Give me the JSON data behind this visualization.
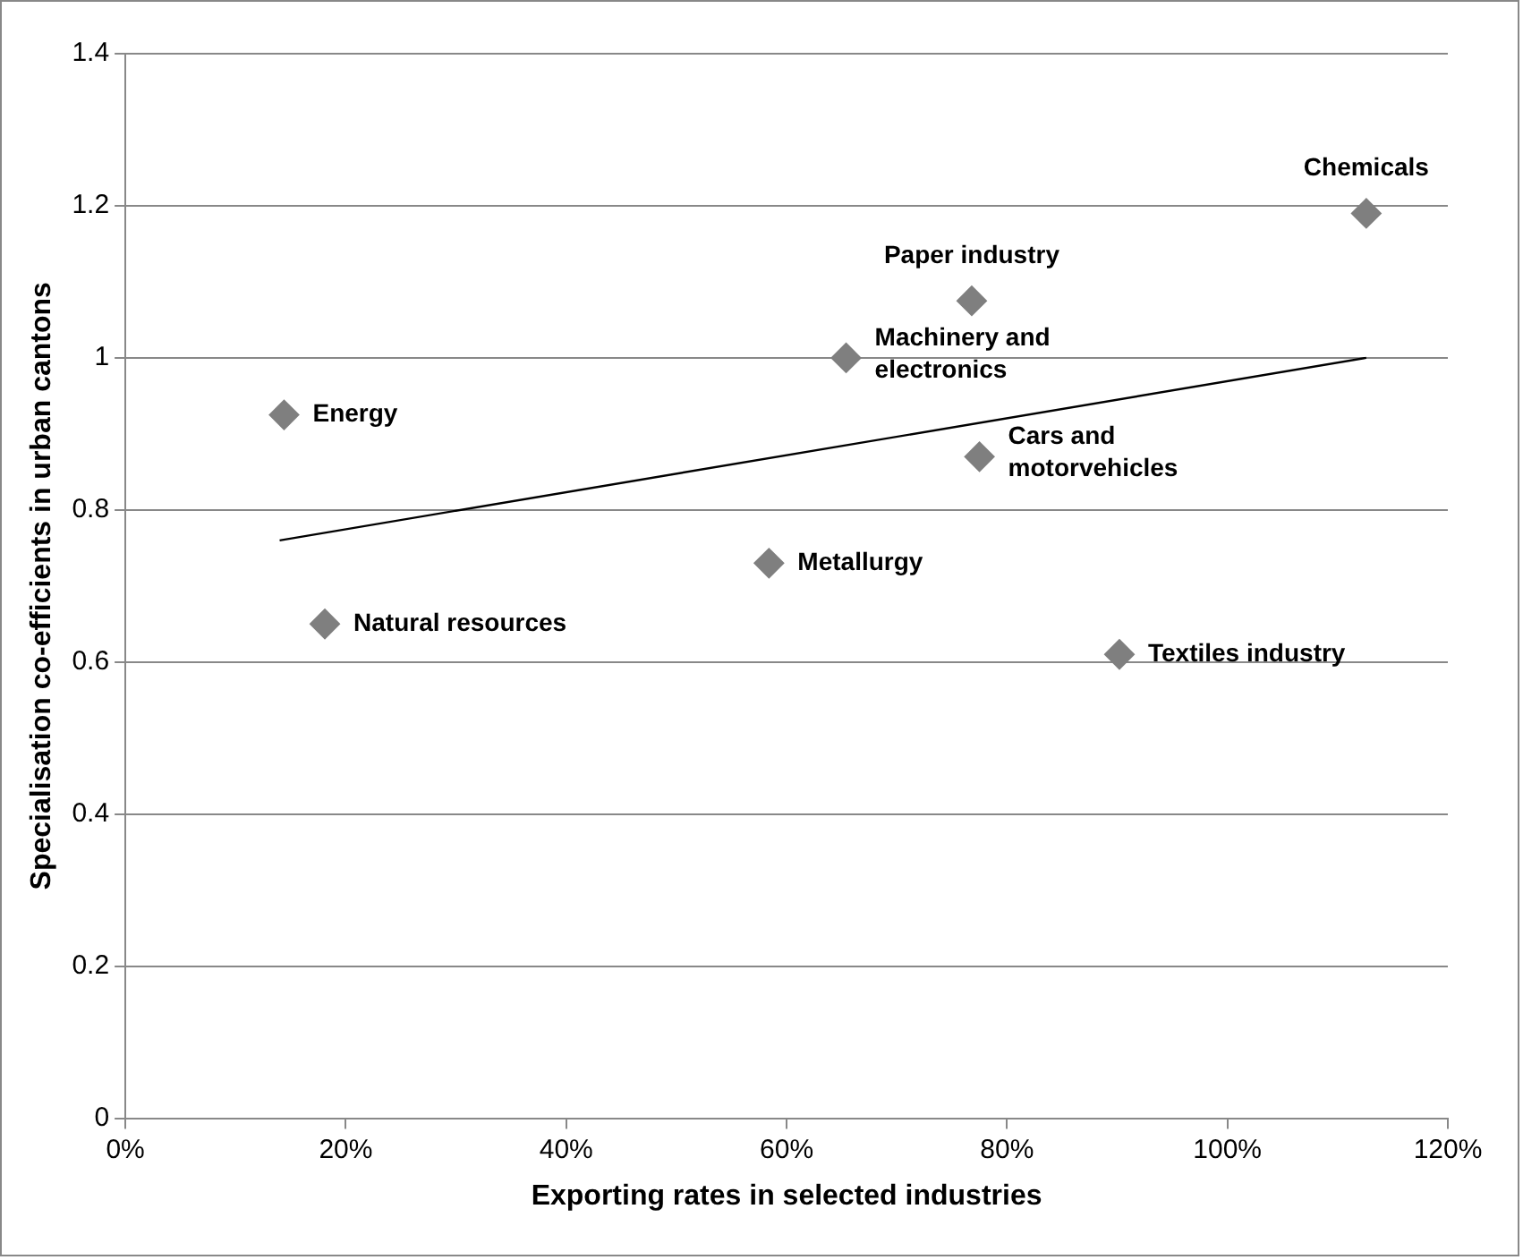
{
  "chart_data": {
    "type": "scatter",
    "xlabel": "Exporting rates in selected industries",
    "ylabel": "Specialisation co-efficients in urban cantons",
    "series": [
      {
        "type": "scatter",
        "color": "#7f7f7f",
        "marker": "diamond",
        "x": [
          14.4,
          18.1,
          58.4,
          65.4,
          76.8,
          77.5,
          90.2,
          112.6
        ],
        "values": [
          0.925,
          0.65,
          0.73,
          1.0,
          1.075,
          0.87,
          0.61,
          1.19
        ]
      },
      {
        "type": "line",
        "marker": "none",
        "color": "#000000",
        "x": [
          14,
          112.6
        ],
        "values": [
          0.76,
          1.0
        ]
      }
    ],
    "xlim": [
      0,
      120
    ],
    "xticks": [
      {
        "value": 0,
        "label": "0%"
      },
      {
        "value": 20,
        "label": "20%"
      },
      {
        "value": 40,
        "label": "40%"
      },
      {
        "value": 60,
        "label": "60%"
      },
      {
        "value": 80,
        "label": "80%"
      },
      {
        "value": 100,
        "label": "100%"
      },
      {
        "value": 120,
        "label": "120%"
      }
    ],
    "ylim": [
      0,
      1.4
    ],
    "yticks": [
      {
        "value": 0,
        "label": "0"
      },
      {
        "value": 0.2,
        "label": "0.2"
      },
      {
        "value": 0.4,
        "label": "0.4"
      },
      {
        "value": 0.6,
        "label": "0.6"
      },
      {
        "value": 0.8,
        "label": "0.8"
      },
      {
        "value": 1,
        "label": "1"
      },
      {
        "value": 1.2,
        "label": "1.2"
      },
      {
        "value": 1.4,
        "label": "1.4"
      }
    ],
    "grid": "y",
    "legend": false,
    "line_style": "solid",
    "annotations": [
      {
        "text": "Energy",
        "x": 14.4,
        "y": 0.925
      },
      {
        "text": "Natural resources",
        "x": 18.1,
        "y": 0.65
      },
      {
        "text": "Metallurgy",
        "x": 58.4,
        "y": 0.73
      },
      {
        "text": "Machinery and electronics",
        "x": 65.4,
        "y": 1.0
      },
      {
        "text": "Paper industry",
        "x": 76.8,
        "y": 1.075
      },
      {
        "text": "Cars and motorvehicles",
        "x": 77.5,
        "y": 0.87
      },
      {
        "text": "Textiles industry",
        "x": 90.2,
        "y": 0.61
      },
      {
        "text": "Chemicals",
        "x": 112.6,
        "y": 1.19
      }
    ]
  }
}
